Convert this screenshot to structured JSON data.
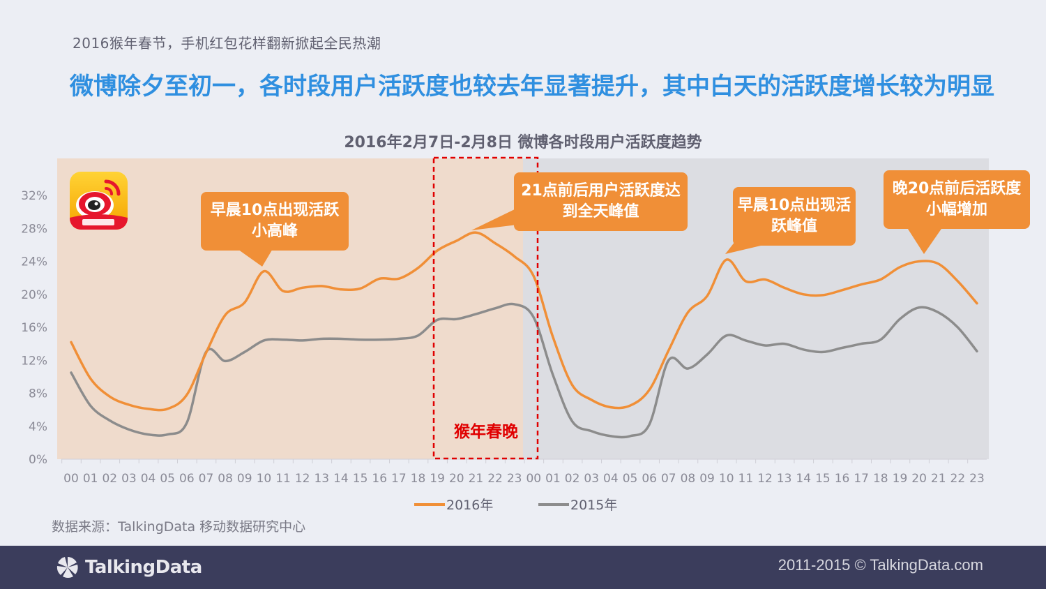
{
  "header": {
    "subtitle": "2016猴年春节，手机红包花样翻新掀起全民热潮",
    "headline": "微博除夕至初一，各时段用户活跃度也较去年显著提升，其中白天的活跃度增长较为明显"
  },
  "colors": {
    "series_2016": "#f08f37",
    "series_2015": "#8c8c8c",
    "day1_bg": "#efdbcc",
    "day2_bg": "#dcdde2",
    "highlight_box": "#e00000",
    "callout": "#f08f37",
    "headline": "#2f8fe0"
  },
  "icons": {
    "logo": "weibo-logo-icon",
    "brand": "talkingdata-logo-icon"
  },
  "chart_data": {
    "type": "line",
    "title": "2016年2月7日-2月8日 微博各时段用户活跃度趋势",
    "xlabel": "",
    "ylabel": "",
    "ylim": [
      0,
      0.32
    ],
    "y_ticks": [
      "0%",
      "4%",
      "8%",
      "12%",
      "16%",
      "20%",
      "24%",
      "28%",
      "32%"
    ],
    "x_tick_labels": [
      "00",
      "01",
      "02",
      "03",
      "04",
      "05",
      "06",
      "07",
      "08",
      "09",
      "10",
      "11",
      "12",
      "13",
      "14",
      "15",
      "16",
      "17",
      "18",
      "19",
      "20",
      "21",
      "22",
      "23",
      "00",
      "01",
      "02",
      "03",
      "04",
      "05",
      "06",
      "07",
      "08",
      "09",
      "10",
      "11",
      "12",
      "13",
      "14",
      "15",
      "16",
      "17",
      "18",
      "19",
      "20",
      "21",
      "22",
      "23"
    ],
    "grid": false,
    "legend": "bottom",
    "series": [
      {
        "name": "2016年",
        "values": [
          14.2,
          9.8,
          7.6,
          6.6,
          6.1,
          6.1,
          7.8,
          12.9,
          17.5,
          19.0,
          22.8,
          20.4,
          20.8,
          21.0,
          20.6,
          20.7,
          21.9,
          21.9,
          23.2,
          25.3,
          26.5,
          27.5,
          26.2,
          24.6,
          22.2,
          14.8,
          9.0,
          7.2,
          6.3,
          6.5,
          8.4,
          13.2,
          17.8,
          19.8,
          24.2,
          21.6,
          21.8,
          20.8,
          20.0,
          19.9,
          20.5,
          21.2,
          21.8,
          23.3,
          24.0,
          23.7,
          21.6,
          18.9
        ]
      },
      {
        "name": "2015年",
        "values": [
          10.5,
          6.5,
          4.7,
          3.6,
          3.0,
          3.0,
          4.4,
          13.0,
          11.9,
          13.0,
          14.4,
          14.5,
          14.4,
          14.6,
          14.6,
          14.5,
          14.5,
          14.6,
          15.0,
          16.9,
          17.0,
          17.6,
          18.3,
          18.8,
          17.2,
          10.2,
          4.6,
          3.4,
          2.8,
          2.8,
          4.2,
          12.0,
          11.0,
          12.7,
          15.0,
          14.4,
          13.8,
          14.0,
          13.3,
          13.0,
          13.5,
          14.0,
          14.5,
          17.0,
          18.4,
          17.8,
          16.0,
          13.1
        ]
      }
    ],
    "annotations": [
      {
        "text": "早晨10点出现活跃小高峰"
      },
      {
        "text": "21点前后用户活跃度达到全天峰值"
      },
      {
        "text": "早晨10点出现活跃峰值"
      },
      {
        "text": "晚20点前后活跃度小幅增加"
      },
      {
        "text": "猴年春晚"
      }
    ]
  },
  "footer": {
    "source": "数据来源：TalkingData 移动数据研究中心",
    "brand": "TalkingData",
    "copyright": "2011-2015 © TalkingData.com"
  }
}
